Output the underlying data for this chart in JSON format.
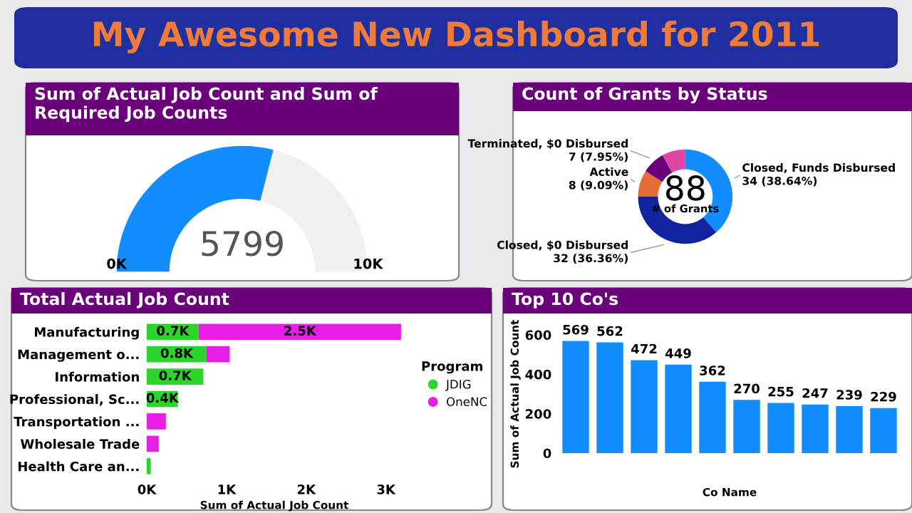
{
  "chart_data": [
    {
      "type": "other",
      "title": "My Awesome New Dashboard for 2011"
    },
    {
      "type": "donut",
      "title": "Sum of Actual Job Count and Sum of Required Job Counts",
      "categories": [
        null,
        null
      ],
      "values": [
        5799,
        4201
      ],
      "colors": [
        "#118dff",
        "#f0f0f0"
      ],
      "value_labels": [
        "5799",
        null
      ],
      "annotations": [
        "0K",
        "10K"
      ]
    },
    {
      "type": "donut",
      "title": "Count of Grants by Status",
      "categories": [
        "Closed, Funds Disbursed",
        "Closed, $0 Disbursed",
        "Active",
        "Terminated, $0 Disbursed",
        null
      ],
      "values": [
        34,
        32,
        8,
        7,
        7
      ],
      "colors": [
        "#118dff",
        "#12239e",
        "#e66c37",
        "#6b007b",
        "#e044a7"
      ],
      "value_labels": [
        "34 (38.64%)",
        "32 (36.36%)",
        "8 (9.09%)",
        "7 (7.95%)",
        null
      ],
      "annotations": [
        "88",
        "# of Grants"
      ]
    },
    {
      "type": "bar",
      "title": "Total Actual Job Count",
      "orientation": "horizontal",
      "stacked": true,
      "categories": [
        "Manufacturing",
        "Management o...",
        "Information",
        "Professional, Sc...",
        "Transportation ...",
        "Wholesale Trade",
        "Health Care an..."
      ],
      "series": [
        {
          "name": "JDIG",
          "color": "#2bd62b",
          "values": [
            650,
            750,
            710,
            390,
            null,
            null,
            50
          ],
          "value_labels": [
            "0.7K",
            "0.8K",
            "0.7K",
            "0.4K",
            null,
            null,
            null
          ]
        },
        {
          "name": "OneNC",
          "color": "#e61ee6",
          "values": [
            2540,
            290,
            null,
            null,
            240,
            150,
            null
          ],
          "value_labels": [
            "2.5K",
            null,
            null,
            null,
            null,
            null,
            null
          ]
        }
      ],
      "xlim": [
        0,
        3200
      ],
      "xticks": [
        {
          "value": 0,
          "label": "0K"
        },
        {
          "value": 1000,
          "label": "1K"
        },
        {
          "value": 2000,
          "label": "2K"
        },
        {
          "value": 3000,
          "label": "3K"
        }
      ],
      "xlabel": "Sum of Actual Job Count",
      "legend_title": "Program",
      "legend": "right"
    },
    {
      "type": "bar",
      "title": "Top 10 Co's",
      "categories": [
        null,
        null,
        null,
        null,
        null,
        null,
        null,
        null,
        null,
        null
      ],
      "values": [
        569,
        562,
        472,
        449,
        362,
        270,
        255,
        247,
        239,
        229
      ],
      "color": "#118dff",
      "data_labels": true,
      "ylim": [
        0,
        600
      ],
      "yticks": [
        0,
        200,
        400,
        600
      ],
      "xlabel": "Co Name",
      "ylabel": "Sum of Actual Job Count"
    }
  ]
}
